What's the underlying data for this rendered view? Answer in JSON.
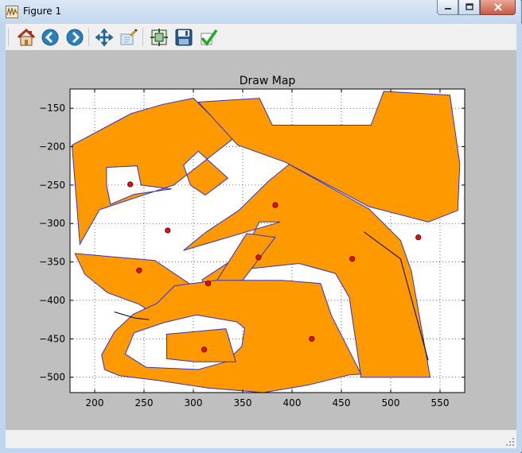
{
  "window": {
    "title": "Figure 1"
  },
  "toolbar": {
    "buttons": [
      {
        "id": "home",
        "icon": "home-icon"
      },
      {
        "id": "back",
        "icon": "back-arrow-icon"
      },
      {
        "id": "forward",
        "icon": "forward-arrow-icon"
      },
      {
        "id": "pan",
        "icon": "pan-move-icon"
      },
      {
        "id": "zoom",
        "icon": "zoom-rect-icon"
      },
      {
        "id": "subplots",
        "icon": "subplots-config-icon"
      },
      {
        "id": "save",
        "icon": "save-disk-icon"
      },
      {
        "id": "edit",
        "icon": "edit-check-icon"
      }
    ]
  },
  "colors": {
    "fill": "#ff9900",
    "edge": "#3333cc",
    "point": "#dd1111",
    "canvas_bg": "#bfbfbf"
  },
  "chart_data": {
    "type": "scatter",
    "title": "Draw Map",
    "xlabel": "",
    "ylabel": "",
    "xlim": [
      175,
      575
    ],
    "ylim": [
      -520,
      -125
    ],
    "xticks": [
      200,
      250,
      300,
      350,
      400,
      450,
      500,
      550
    ],
    "yticks": [
      -150,
      -200,
      -250,
      -300,
      -350,
      -400,
      -450,
      -500
    ],
    "grid": true,
    "polygons": [
      {
        "name": "top-left-block",
        "points": [
          [
            177,
            -198
          ],
          [
            237,
            -157
          ],
          [
            269,
            -145
          ],
          [
            300,
            -137
          ],
          [
            335,
            -182
          ],
          [
            340,
            -190
          ],
          [
            280,
            -250
          ],
          [
            240,
            -267
          ],
          [
            205,
            -282
          ],
          [
            188,
            -320
          ],
          [
            185,
            -327
          ]
        ],
        "holes": [
          [
            [
              212,
              -227
            ],
            [
              243,
              -225
            ],
            [
              247,
              -250
            ],
            [
              278,
              -255
            ],
            [
              240,
              -262
            ],
            [
              216,
              -275
            ],
            [
              212,
              -250
            ]
          ],
          [
            [
              290,
              -224
            ],
            [
              305,
              -206
            ],
            [
              335,
              -241
            ],
            [
              312,
              -263
            ],
            [
              297,
              -250
            ]
          ]
        ]
      },
      {
        "name": "top-right-block",
        "points": [
          [
            305,
            -142
          ],
          [
            367,
            -137
          ],
          [
            380,
            -172
          ],
          [
            480,
            -172
          ],
          [
            493,
            -128
          ],
          [
            560,
            -133
          ],
          [
            570,
            -222
          ],
          [
            568,
            -283
          ],
          [
            538,
            -298
          ],
          [
            478,
            -278
          ],
          [
            393,
            -220
          ],
          [
            345,
            -198
          ]
        ]
      },
      {
        "name": "center-block",
        "points": [
          [
            290,
            -335
          ],
          [
            312,
            -312
          ],
          [
            346,
            -283
          ],
          [
            376,
            -245
          ],
          [
            397,
            -223
          ],
          [
            478,
            -281
          ],
          [
            510,
            -322
          ],
          [
            521,
            -362
          ],
          [
            540,
            -500
          ],
          [
            470,
            -500
          ],
          [
            458,
            -396
          ],
          [
            444,
            -365
          ],
          [
            407,
            -352
          ],
          [
            341,
            -361
          ],
          [
            313,
            -398
          ],
          [
            309,
            -373
          ],
          [
            340,
            -347
          ],
          [
            360,
            -315
          ],
          [
            367,
            -298
          ],
          [
            388,
            -298
          ]
        ]
      },
      {
        "name": "center-inner-block",
        "points": [
          [
            318,
            -386
          ],
          [
            354,
            -313
          ],
          [
            383,
            -318
          ],
          [
            344,
            -384
          ]
        ]
      },
      {
        "name": "left-block",
        "points": [
          [
            180,
            -339
          ],
          [
            261,
            -348
          ],
          [
            305,
            -386
          ],
          [
            269,
            -425
          ],
          [
            245,
            -405
          ],
          [
            213,
            -390
          ],
          [
            190,
            -366
          ]
        ]
      },
      {
        "name": "bottom-block",
        "points": [
          [
            220,
            -441
          ],
          [
            239,
            -418
          ],
          [
            263,
            -404
          ],
          [
            281,
            -381
          ],
          [
            323,
            -374
          ],
          [
            390,
            -374
          ],
          [
            429,
            -378
          ],
          [
            432,
            -390
          ],
          [
            440,
            -420
          ],
          [
            470,
            -496
          ],
          [
            458,
            -497
          ],
          [
            417,
            -510
          ],
          [
            371,
            -520
          ],
          [
            315,
            -514
          ],
          [
            263,
            -504
          ],
          [
            225,
            -498
          ],
          [
            210,
            -490
          ],
          [
            207,
            -471
          ]
        ],
        "holes": [
          [
            [
              240,
              -442
            ],
            [
              270,
              -429
            ],
            [
              303,
              -419
            ],
            [
              344,
              -428
            ],
            [
              352,
              -436
            ],
            [
              349,
              -460
            ],
            [
              333,
              -480
            ],
            [
              305,
              -490
            ],
            [
              252,
              -487
            ],
            [
              231,
              -470
            ]
          ]
        ]
      },
      {
        "name": "bottom-inner-block",
        "points": [
          [
            273,
            -444
          ],
          [
            333,
            -437
          ],
          [
            343,
            -480
          ],
          [
            302,
            -480
          ],
          [
            273,
            -476
          ]
        ]
      }
    ],
    "lines": [
      {
        "name": "road-right",
        "points": [
          [
            473,
            -311
          ],
          [
            510,
            -346
          ],
          [
            538,
            -478
          ]
        ]
      },
      {
        "name": "road-left",
        "points": [
          [
            220,
            -415
          ],
          [
            241,
            -423
          ],
          [
            255,
            -425
          ]
        ]
      }
    ],
    "points": [
      {
        "x": 236,
        "y": -249
      },
      {
        "x": 274,
        "y": -309
      },
      {
        "x": 383,
        "y": -276
      },
      {
        "x": 528,
        "y": -318
      },
      {
        "x": 245,
        "y": -361
      },
      {
        "x": 366,
        "y": -344
      },
      {
        "x": 461,
        "y": -346
      },
      {
        "x": 315,
        "y": -378
      },
      {
        "x": 311,
        "y": -464
      },
      {
        "x": 420,
        "y": -450
      }
    ]
  }
}
